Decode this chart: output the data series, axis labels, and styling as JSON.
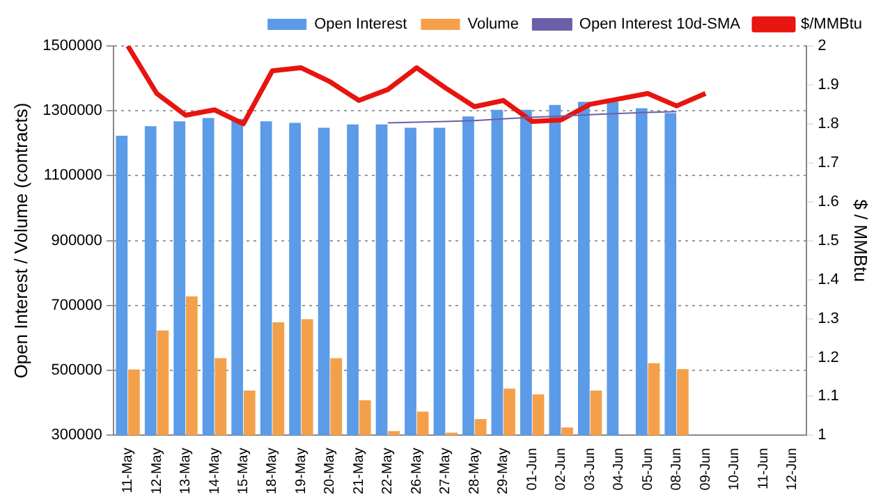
{
  "chart_data": {
    "type": "bar",
    "xlabel": null,
    "ylabel": "Open Interest / Volume (contracts)",
    "y2label": "$ / MMBtu",
    "categories": [
      "11-May",
      "12-May",
      "13-May",
      "14-May",
      "15-May",
      "18-May",
      "19-May",
      "20-May",
      "21-May",
      "22-May",
      "26-May",
      "27-May",
      "28-May",
      "29-May",
      "01-Jun",
      "02-Jun",
      "03-Jun",
      "04-Jun",
      "05-Jun",
      "08-Jun",
      "09-Jun",
      "10-Jun",
      "11-Jun",
      "12-Jun"
    ],
    "series": [
      {
        "name": "Open Interest",
        "color": "#5b9be8",
        "values": [
          1223000,
          1253000,
          1268000,
          1278000,
          1275000,
          1268000,
          1263000,
          1248000,
          1258000,
          1258000,
          1248000,
          1248000,
          1283000,
          1303000,
          1303000,
          1318000,
          1328000,
          1328000,
          1308000,
          1293000,
          null,
          null,
          null,
          null
        ]
      },
      {
        "name": "Volume",
        "color": "#f4a04a",
        "values": [
          503000,
          623000,
          728000,
          538000,
          438000,
          648000,
          658000,
          538000,
          408000,
          313000,
          373000,
          308000,
          350000,
          444000,
          426000,
          324000,
          438000,
          null,
          522000,
          504000,
          null,
          null,
          null,
          null
        ]
      },
      {
        "name": "Open Interest 10d-SMA",
        "type": "line",
        "color": "#6b5fa8",
        "values": [
          null,
          null,
          null,
          null,
          null,
          null,
          null,
          null,
          null,
          1263000,
          1265000,
          1267000,
          1270000,
          1275000,
          1280000,
          1284000,
          1288000,
          1292000,
          1295000,
          1298000,
          null,
          null,
          null,
          null
        ]
      },
      {
        "name": "$/MMBtu",
        "type": "line",
        "axis": "y2",
        "color": "#e8140f",
        "values": [
          2.0,
          1.878,
          1.822,
          1.836,
          1.8,
          1.936,
          1.944,
          1.908,
          1.86,
          1.888,
          1.944,
          1.892,
          1.844,
          1.86,
          1.806,
          1.81,
          1.85,
          1.864,
          1.878,
          1.846,
          1.878,
          null,
          null,
          null
        ]
      }
    ],
    "ylim": [
      300000,
      1500000
    ],
    "yticks": [
      300000,
      500000,
      700000,
      900000,
      1100000,
      1300000,
      1500000
    ],
    "y2lim": [
      1,
      2
    ],
    "y2ticks": [
      1,
      1.1,
      1.2,
      1.3,
      1.4,
      1.5,
      1.6,
      1.7,
      1.8,
      1.9,
      2
    ],
    "grid": "y",
    "legend": "top right",
    "marker": "none"
  }
}
